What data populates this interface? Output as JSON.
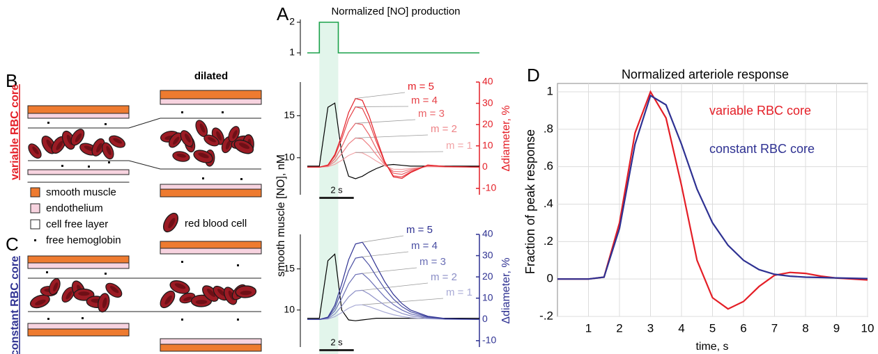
{
  "panel_labels": [
    "A",
    "B",
    "C",
    "D"
  ],
  "schematic": {
    "dilated": "dilated",
    "variable_label": "variable RBC core",
    "constant_label": "constant RBC core",
    "legend": [
      "smooth muscle",
      "endothelium",
      "cell free layer",
      "free hemoglobin",
      "red blood cell"
    ]
  },
  "chart_data": [
    {
      "type": "line",
      "title": "Normalized [NO] production",
      "x": [
        0,
        0.7,
        0.7,
        1.8,
        1.8,
        10
      ],
      "series": [
        {
          "color": "#1aa14a",
          "values": [
            1,
            1,
            2,
            2,
            1,
            1
          ]
        }
      ],
      "xlim": [
        0,
        10
      ],
      "ylim": [
        1,
        2
      ],
      "yticks": [
        1,
        2
      ],
      "stimulus": [
        0.7,
        1.8
      ]
    },
    {
      "type": "line",
      "ylabel": "smooth muscle [NO], nM",
      "y2label": "Δdiameter, %",
      "y2color": "#e41e26",
      "x": [
        0,
        0.7,
        1.2,
        1.6,
        2.0,
        2.4,
        2.8,
        3.2,
        3.6,
        4.0,
        4.5,
        5.0,
        5.5,
        6.0,
        7.0,
        8.0,
        10
      ],
      "series": [
        {
          "color": "#000000",
          "values": [
            9,
            9,
            16.0,
            16.5,
            10.5,
            7.8,
            7.5,
            7.8,
            8.3,
            8.7,
            9.1,
            9.2,
            9.1,
            9.0,
            9.0,
            9.0,
            9.0
          ]
        },
        {
          "name": "m = 1",
          "color": "#f2a3a6",
          "axis": "y2",
          "values": [
            0,
            0,
            0.2,
            1.3,
            3.2,
            5.5,
            6.9,
            6.7,
            5.0,
            2.9,
            0.6,
            -1.0,
            -1.1,
            -0.6,
            0.2,
            0.1,
            0
          ]
        },
        {
          "name": "m = 2",
          "color": "#ee8286",
          "axis": "y2",
          "values": [
            0,
            0,
            0.4,
            2.5,
            6.3,
            10.9,
            13.7,
            13.3,
            10.1,
            5.9,
            1.1,
            -2.0,
            -2.2,
            -1.1,
            0.4,
            0.1,
            0
          ]
        },
        {
          "name": "m = 3",
          "color": "#ea6166",
          "axis": "y2",
          "values": [
            0,
            0,
            0.6,
            3.8,
            9.5,
            16.4,
            20.6,
            20.0,
            15.1,
            8.8,
            1.7,
            -2.9,
            -3.4,
            -1.7,
            0.6,
            0.2,
            0
          ]
        },
        {
          "name": "m = 4",
          "color": "#e64046",
          "axis": "y2",
          "values": [
            0,
            0,
            0.9,
            5.2,
            13.1,
            22.6,
            28.4,
            27.6,
            20.9,
            12.2,
            2.3,
            -4.1,
            -4.6,
            -2.3,
            0.9,
            0.3,
            0
          ]
        },
        {
          "name": "m = 5",
          "color": "#e41e26",
          "axis": "y2",
          "values": [
            0,
            0,
            1.0,
            5.9,
            14.9,
            25.7,
            32.3,
            31.4,
            23.8,
            13.9,
            2.6,
            -4.6,
            -5.3,
            -2.6,
            1.0,
            0.3,
            0
          ]
        }
      ],
      "xlim": [
        0,
        10
      ],
      "ylim": [
        5.6,
        19
      ],
      "yticks": [
        10,
        15
      ],
      "y2lim": [
        -13,
        40
      ],
      "y2ticks": [
        -10,
        0,
        10,
        20,
        30,
        40
      ],
      "scale_bar": 2,
      "scale_bar_label": "2 s"
    },
    {
      "type": "line",
      "y2label": "Δdiameter, %",
      "y2color": "#2e3192",
      "x": [
        0,
        0.7,
        1.2,
        1.6,
        2.0,
        2.4,
        2.8,
        3.2,
        3.6,
        4.0,
        4.5,
        5.0,
        5.5,
        6.0,
        7.0,
        8.0,
        10
      ],
      "series": [
        {
          "color": "#000000",
          "values": [
            9,
            9,
            16.0,
            16.8,
            10.0,
            8.8,
            8.7,
            8.8,
            8.9,
            9.0,
            9.0,
            9.0,
            9.0,
            9.0,
            9.0,
            9.0,
            9.0
          ]
        },
        {
          "name": "m = 1",
          "color": "#a9abd6",
          "axis": "y2",
          "values": [
            0,
            0,
            0.2,
            1.3,
            3.2,
            5.3,
            6.7,
            6.9,
            6.0,
            4.8,
            3.4,
            2.2,
            1.4,
            0.8,
            0.3,
            0.1,
            0
          ]
        },
        {
          "name": "m = 2",
          "color": "#8b8ec6",
          "axis": "y2",
          "values": [
            0,
            0,
            0.4,
            2.5,
            6.3,
            10.6,
            13.4,
            13.7,
            11.9,
            9.5,
            6.7,
            4.5,
            2.8,
            1.7,
            0.6,
            0.1,
            0
          ]
        },
        {
          "name": "m = 3",
          "color": "#6a6eb5",
          "axis": "y2",
          "values": [
            0,
            0,
            0.7,
            4.0,
            9.9,
            16.7,
            21.1,
            21.6,
            18.7,
            15.0,
            10.6,
            7.0,
            4.4,
            2.6,
            0.9,
            0.2,
            0
          ]
        },
        {
          "name": "m = 4",
          "color": "#4a4fa3",
          "axis": "y2",
          "values": [
            0,
            0,
            0.9,
            5.4,
            13.5,
            22.8,
            28.8,
            29.4,
            25.5,
            20.4,
            14.4,
            9.6,
            6.0,
            3.6,
            1.2,
            0.3,
            0
          ]
        },
        {
          "name": "m = 5",
          "color": "#2e3192",
          "axis": "y2",
          "values": [
            0,
            0,
            1.1,
            6.7,
            16.7,
            28.1,
            35.5,
            36.3,
            31.5,
            25.2,
            17.8,
            11.8,
            7.4,
            4.4,
            1.5,
            0.4,
            0
          ]
        }
      ],
      "xlim": [
        0,
        10
      ],
      "ylim": [
        5.5,
        19.2
      ],
      "yticks": [
        10,
        15
      ],
      "y2lim": [
        -13,
        40
      ],
      "y2ticks": [
        -10,
        0,
        10,
        20,
        30,
        40
      ],
      "scale_bar": 2,
      "scale_bar_label": "2 s"
    },
    {
      "type": "line",
      "title": "Normalized arteriole response",
      "xlabel": "time, s",
      "ylabel": "Fraction of peak response",
      "x": [
        0,
        0.5,
        1,
        1.5,
        2,
        2.5,
        3,
        3.5,
        4,
        4.5,
        5,
        5.5,
        6,
        6.5,
        7,
        7.5,
        8,
        8.5,
        9,
        9.5,
        10
      ],
      "series": [
        {
          "name": "variable RBC core",
          "color": "#e41e26",
          "values": [
            0,
            0,
            0,
            0.01,
            0.3,
            0.78,
            1.0,
            0.86,
            0.5,
            0.1,
            -0.1,
            -0.16,
            -0.12,
            -0.04,
            0.02,
            0.035,
            0.03,
            0.015,
            0.005,
            0,
            -0.005
          ]
        },
        {
          "name": "constant RBC core",
          "color": "#2e3192",
          "values": [
            0,
            0,
            0,
            0.01,
            0.27,
            0.72,
            0.98,
            0.93,
            0.72,
            0.48,
            0.3,
            0.18,
            0.1,
            0.05,
            0.025,
            0.015,
            0.01,
            0.008,
            0.006,
            0.004,
            0.002
          ]
        }
      ],
      "xlim": [
        0,
        10
      ],
      "ylim": [
        -0.2,
        1
      ],
      "xticks": [
        1,
        2,
        3,
        4,
        5,
        6,
        7,
        8,
        9,
        10
      ],
      "yticks": [
        {
          "value": -0.2,
          "label": "-.2"
        },
        0,
        {
          "value": 0.2,
          "label": ".2"
        },
        {
          "value": 0.4,
          "label": ".4"
        },
        {
          "value": 0.6,
          "label": ".6"
        },
        {
          "value": 0.8,
          "label": ".8"
        },
        1
      ],
      "grid": true
    }
  ]
}
